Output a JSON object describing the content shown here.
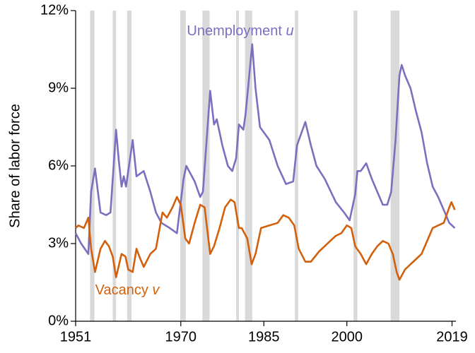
{
  "chart_data": {
    "type": "line",
    "ylabel": "Share of labor force",
    "xlim": [
      1951,
      2019.7
    ],
    "xticks": [
      1951,
      1970,
      1985,
      2000,
      2019
    ],
    "ylim": [
      0,
      12
    ],
    "yticks": [
      {
        "value": 0,
        "label": "0%"
      },
      {
        "value": 3,
        "label": "3%"
      },
      {
        "value": 6,
        "label": "6%"
      },
      {
        "value": 9,
        "label": "9%"
      },
      {
        "value": 12,
        "label": "12%"
      }
    ],
    "shaded_color": "#d9d9d9",
    "shaded_regions": [
      [
        1953.6,
        1954.4
      ],
      [
        1957.7,
        1958.3
      ],
      [
        1960.3,
        1961.1
      ],
      [
        1969.9,
        1970.9
      ],
      [
        1973.9,
        1975.2
      ],
      [
        1980.0,
        1980.5
      ],
      [
        1981.6,
        1982.9
      ],
      [
        1990.6,
        1991.2
      ],
      [
        2001.2,
        2001.9
      ],
      [
        2007.9,
        2009.5
      ]
    ],
    "series": [
      {
        "name": "Unemployment",
        "symbol": "u",
        "color": "#7b6fbf",
        "x": [
          1951,
          1952,
          1953.3,
          1953.8,
          1954.5,
          1955.5,
          1956.5,
          1957.3,
          1958.3,
          1958.8,
          1959.3,
          1959.7,
          1960.1,
          1961.3,
          1962.0,
          1963.3,
          1964.5,
          1965.5,
          1966.5,
          1968.0,
          1969.3,
          1970.5,
          1971.0,
          1972.5,
          1973.5,
          1974.0,
          1975.3,
          1976.0,
          1976.5,
          1977.5,
          1978.5,
          1979.3,
          1980.0,
          1980.5,
          1981.3,
          1981.7,
          1982.9,
          1983.5,
          1984.3,
          1986.0,
          1987.5,
          1989.0,
          1990.3,
          1991.0,
          1992.5,
          1993.5,
          1994.5,
          1996.0,
          1998.0,
          1999.5,
          2000.5,
          2001.5,
          2001.9,
          2002.5,
          2003.5,
          2004.5,
          2005.5,
          2006.5,
          2007.3,
          2008.0,
          2008.8,
          2009.5,
          2009.9,
          2010.5,
          2011.5,
          2012.5,
          2013.5,
          2014.5,
          2015.5,
          2016.5,
          2017.5,
          2018.5,
          2019.0,
          2019.5
        ],
        "values": [
          3.4,
          3.0,
          2.6,
          5.0,
          5.9,
          4.2,
          4.1,
          4.2,
          7.4,
          6.2,
          5.2,
          5.6,
          5.2,
          7.0,
          5.6,
          5.8,
          5.0,
          4.2,
          3.8,
          3.6,
          3.4,
          5.5,
          6.0,
          5.4,
          4.8,
          5.0,
          8.9,
          7.6,
          7.8,
          6.8,
          6.0,
          5.8,
          6.3,
          7.6,
          7.4,
          8.0,
          10.7,
          9.0,
          7.5,
          7.0,
          6.0,
          5.3,
          5.4,
          6.8,
          7.7,
          6.8,
          6.0,
          5.5,
          4.6,
          4.2,
          3.9,
          4.9,
          5.8,
          5.8,
          6.1,
          5.5,
          5.0,
          4.5,
          4.5,
          5.0,
          7.0,
          9.5,
          9.9,
          9.5,
          9.0,
          8.1,
          7.3,
          6.1,
          5.2,
          4.8,
          4.3,
          3.8,
          3.7,
          3.6
        ]
      },
      {
        "name": "Vacancy",
        "symbol": "v",
        "color": "#d2600c",
        "x": [
          1951,
          1951.5,
          1952.5,
          1953.3,
          1953.8,
          1954.5,
          1955.5,
          1956.3,
          1957.0,
          1957.7,
          1958.3,
          1959.3,
          1960.0,
          1960.5,
          1961.3,
          1962.0,
          1962.5,
          1963.3,
          1964.5,
          1965.5,
          1966.7,
          1967.5,
          1968.5,
          1969.3,
          1970.0,
          1970.8,
          1971.5,
          1972.5,
          1973.5,
          1974.3,
          1975.3,
          1976.0,
          1977.0,
          1978.0,
          1979.0,
          1979.7,
          1980.5,
          1981.0,
          1982.0,
          1982.8,
          1983.5,
          1984.5,
          1986.0,
          1987.5,
          1988.5,
          1989.5,
          1990.5,
          1991.3,
          1992.5,
          1993.5,
          1995.0,
          1996.0,
          1997.0,
          1998.0,
          1999.0,
          2000.0,
          2000.8,
          2001.5,
          2002.5,
          2003.5,
          2004.5,
          2005.5,
          2006.5,
          2007.5,
          2008.3,
          2009.0,
          2009.5,
          2010.5,
          2011.5,
          2012.5,
          2013.5,
          2014.5,
          2015.5,
          2016.5,
          2017.5,
          2018.5,
          2018.9,
          2019.5
        ],
        "values": [
          3.6,
          3.7,
          3.6,
          4.0,
          2.8,
          1.9,
          2.8,
          3.1,
          2.9,
          2.5,
          1.7,
          2.6,
          2.5,
          2.0,
          1.9,
          2.8,
          2.5,
          2.1,
          2.6,
          2.8,
          4.2,
          4.0,
          4.4,
          4.8,
          4.5,
          3.2,
          3.0,
          3.8,
          4.5,
          4.4,
          2.6,
          2.9,
          3.6,
          4.4,
          4.7,
          4.6,
          3.6,
          3.6,
          3.2,
          2.2,
          2.6,
          3.6,
          3.7,
          3.8,
          4.1,
          4.0,
          3.7,
          2.8,
          2.3,
          2.3,
          2.7,
          2.9,
          3.1,
          3.3,
          3.4,
          3.7,
          3.6,
          2.9,
          2.6,
          2.2,
          2.6,
          2.9,
          3.1,
          3.0,
          2.6,
          1.9,
          1.6,
          2.0,
          2.2,
          2.4,
          2.6,
          3.1,
          3.6,
          3.7,
          3.8,
          4.4,
          4.6,
          4.3
        ]
      }
    ]
  }
}
